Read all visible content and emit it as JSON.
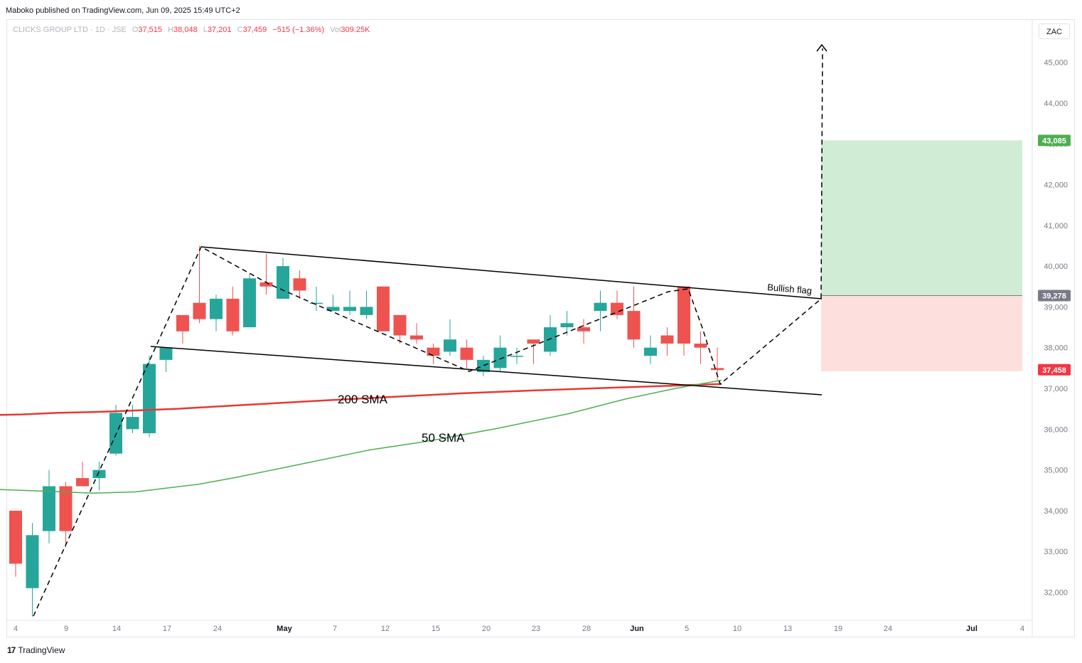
{
  "header": {
    "published_text": "Maboko published on TradingView.com, Jun 09, 2025 15:49 UTC+2"
  },
  "legend": {
    "symbol": "CLICKS GROUP LTD · 1D · JSE",
    "o_label": "O",
    "o_value": "37,515",
    "h_label": "H",
    "h_value": "38,048",
    "l_label": "L",
    "l_value": "37,201",
    "c_label": "C",
    "c_value": "37,459",
    "change": "−515 (−1.36%)",
    "vol_label": "Vol",
    "vol_value": "309.25K"
  },
  "currency": "ZAC",
  "brand": {
    "logo": "17",
    "name": "TradingView"
  },
  "colors": {
    "up": "#26a69a",
    "down": "#ef5350",
    "sma200": "#e53935",
    "sma50": "#4caf50",
    "target_zone": "#d1ecd4",
    "stop_zone": "#fde0dd",
    "target_badge": "#4caf50",
    "price_badge": "#f23645",
    "entry_badge": "#787b86"
  },
  "chart_data": {
    "type": "candlestick",
    "y_ticks": [
      "32,000",
      "33,000",
      "34,000",
      "35,000",
      "36,000",
      "37,000",
      "38,000",
      "39,000",
      "40,000",
      "41,000",
      "42,000",
      "43,000",
      "44,000",
      "45,000"
    ],
    "x_ticks": [
      {
        "label": "4",
        "bold": false
      },
      {
        "label": "9",
        "bold": false
      },
      {
        "label": "14",
        "bold": false
      },
      {
        "label": "17",
        "bold": false
      },
      {
        "label": "24",
        "bold": false
      },
      {
        "label": "May",
        "bold": true
      },
      {
        "label": "7",
        "bold": false
      },
      {
        "label": "12",
        "bold": false
      },
      {
        "label": "15",
        "bold": false
      },
      {
        "label": "20",
        "bold": false
      },
      {
        "label": "23",
        "bold": false
      },
      {
        "label": "28",
        "bold": false
      },
      {
        "label": "Jun",
        "bold": true
      },
      {
        "label": "5",
        "bold": false
      },
      {
        "label": "10",
        "bold": false
      },
      {
        "label": "13",
        "bold": false
      },
      {
        "label": "19",
        "bold": false
      },
      {
        "label": "24",
        "bold": false
      },
      {
        "label": "Jul",
        "bold": true
      },
      {
        "label": "4",
        "bold": false
      }
    ],
    "candles": [
      {
        "o": 34000,
        "h": 34000,
        "l": 32380,
        "c": 32700
      },
      {
        "o": 32100,
        "h": 33700,
        "l": 31400,
        "c": 33400
      },
      {
        "o": 33500,
        "h": 35000,
        "l": 33200,
        "c": 34600
      },
      {
        "o": 34600,
        "h": 34700,
        "l": 33100,
        "c": 33500
      },
      {
        "o": 34800,
        "h": 35200,
        "l": 34600,
        "c": 34600
      },
      {
        "o": 34800,
        "h": 35200,
        "l": 34500,
        "c": 35000
      },
      {
        "o": 35400,
        "h": 36600,
        "l": 35350,
        "c": 36400
      },
      {
        "o": 36000,
        "h": 36600,
        "l": 35900,
        "c": 36300
      },
      {
        "o": 35900,
        "h": 37800,
        "l": 35800,
        "c": 37600
      },
      {
        "o": 37700,
        "h": 38000,
        "l": 37400,
        "c": 38000
      },
      {
        "o": 38800,
        "h": 38800,
        "l": 38100,
        "c": 38400
      },
      {
        "o": 39100,
        "h": 40500,
        "l": 38600,
        "c": 38700
      },
      {
        "o": 38700,
        "h": 39300,
        "l": 38400,
        "c": 39200
      },
      {
        "o": 39200,
        "h": 39500,
        "l": 38300,
        "c": 38400
      },
      {
        "o": 38500,
        "h": 39800,
        "l": 38500,
        "c": 39700
      },
      {
        "o": 39600,
        "h": 40300,
        "l": 39300,
        "c": 39500
      },
      {
        "o": 39200,
        "h": 40200,
        "l": 39200,
        "c": 40000
      },
      {
        "o": 39700,
        "h": 39900,
        "l": 39200,
        "c": 39400
      },
      {
        "o": 39100,
        "h": 39500,
        "l": 38900,
        "c": 39100
      },
      {
        "o": 38900,
        "h": 39300,
        "l": 38900,
        "c": 39000
      },
      {
        "o": 38900,
        "h": 39400,
        "l": 38800,
        "c": 39000
      },
      {
        "o": 38800,
        "h": 39400,
        "l": 38700,
        "c": 39000
      },
      {
        "o": 39500,
        "h": 39500,
        "l": 38400,
        "c": 38400
      },
      {
        "o": 38800,
        "h": 38800,
        "l": 38100,
        "c": 38300
      },
      {
        "o": 38300,
        "h": 38600,
        "l": 38100,
        "c": 38200
      },
      {
        "o": 38000,
        "h": 38100,
        "l": 37600,
        "c": 37800
      },
      {
        "o": 37900,
        "h": 38700,
        "l": 37800,
        "c": 38200
      },
      {
        "o": 38000,
        "h": 38200,
        "l": 37500,
        "c": 37700
      },
      {
        "o": 37400,
        "h": 37800,
        "l": 37300,
        "c": 37700
      },
      {
        "o": 37500,
        "h": 38300,
        "l": 37400,
        "c": 38000
      },
      {
        "o": 37800,
        "h": 38000,
        "l": 37600,
        "c": 37800
      },
      {
        "o": 38200,
        "h": 38200,
        "l": 37600,
        "c": 38100
      },
      {
        "o": 37900,
        "h": 38800,
        "l": 37800,
        "c": 38500
      },
      {
        "o": 38500,
        "h": 38900,
        "l": 38300,
        "c": 38600
      },
      {
        "o": 38500,
        "h": 38700,
        "l": 38100,
        "c": 38400
      },
      {
        "o": 38900,
        "h": 39400,
        "l": 38400,
        "c": 39100
      },
      {
        "o": 39100,
        "h": 39400,
        "l": 38700,
        "c": 38800
      },
      {
        "o": 38900,
        "h": 39500,
        "l": 38000,
        "c": 38200
      },
      {
        "o": 37800,
        "h": 38300,
        "l": 37600,
        "c": 38000
      },
      {
        "o": 38300,
        "h": 38500,
        "l": 37800,
        "c": 38100
      },
      {
        "o": 39500,
        "h": 39500,
        "l": 37800,
        "c": 38100
      },
      {
        "o": 38100,
        "h": 38400,
        "l": 37600,
        "c": 38000
      },
      {
        "o": 37500,
        "h": 38000,
        "l": 37200,
        "c": 37450
      }
    ],
    "sma200": [
      [
        0,
        36350
      ],
      [
        30,
        36360
      ],
      [
        80,
        36400
      ],
      [
        150,
        36430
      ],
      [
        250,
        36500
      ],
      [
        350,
        36600
      ],
      [
        450,
        36700
      ],
      [
        550,
        36790
      ],
      [
        650,
        36880
      ],
      [
        750,
        36950
      ],
      [
        850,
        37010
      ],
      [
        950,
        37070
      ],
      [
        1015,
        37110
      ]
    ],
    "sma50": [
      [
        0,
        34520
      ],
      [
        60,
        34480
      ],
      [
        130,
        34430
      ],
      [
        190,
        34460
      ],
      [
        280,
        34650
      ],
      [
        330,
        34810
      ],
      [
        420,
        35130
      ],
      [
        520,
        35490
      ],
      [
        600,
        35700
      ],
      [
        700,
        36020
      ],
      [
        800,
        36380
      ],
      [
        880,
        36740
      ],
      [
        950,
        37000
      ],
      [
        1015,
        37200
      ]
    ],
    "annotations": {
      "sma200_label": "200 SMA",
      "sma50_label": "50 SMA",
      "flag_label": "Bullish flag"
    },
    "levels": {
      "target_label": "43,085",
      "entry_label": "39,278",
      "last_label": "37,458"
    }
  }
}
